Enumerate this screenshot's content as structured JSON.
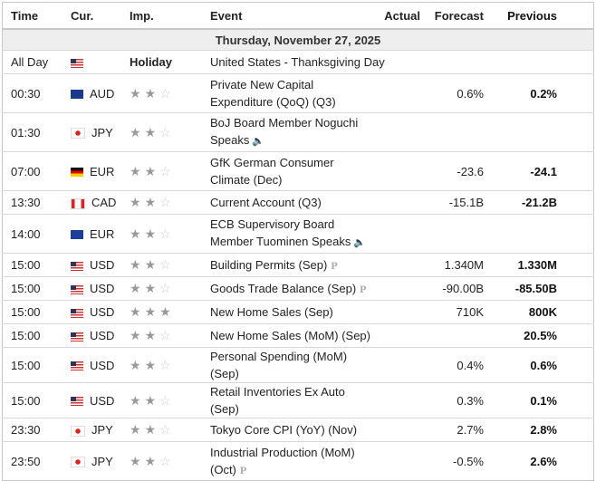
{
  "headers": {
    "time": "Time",
    "cur": "Cur.",
    "imp": "Imp.",
    "event": "Event",
    "actual": "Actual",
    "forecast": "Forecast",
    "previous": "Previous"
  },
  "date": "Thursday, November 27, 2025",
  "holiday": {
    "time": "All Day",
    "country": "us",
    "label": "Holiday",
    "event": "United States - Thanksgiving Day"
  },
  "rows": [
    {
      "time": "00:30",
      "country": "au",
      "cur": "AUD",
      "stars": 2,
      "event": "Private New Capital Expenditure (QoQ) (Q3)",
      "actual": "",
      "forecast": "0.6%",
      "previous": "0.2%",
      "double": true
    },
    {
      "time": "01:30",
      "country": "jp",
      "cur": "JPY",
      "stars": 2,
      "event": "BoJ Board Member Noguchi Speaks",
      "icon": "speaker-icon",
      "actual": "",
      "forecast": "",
      "previous": "",
      "double": true
    },
    {
      "time": "07:00",
      "country": "de",
      "cur": "EUR",
      "stars": 2,
      "event": "GfK German Consumer Climate (Dec)",
      "actual": "",
      "forecast": "-23.6",
      "previous": "-24.1",
      "double": true
    },
    {
      "time": "13:30",
      "country": "ca",
      "cur": "CAD",
      "stars": 2,
      "event": "Current Account (Q3)",
      "actual": "",
      "forecast": "-15.1B",
      "previous": "-21.2B"
    },
    {
      "time": "14:00",
      "country": "eu",
      "cur": "EUR",
      "stars": 2,
      "event": "ECB Supervisory Board Member Tuominen Speaks",
      "icon": "speaker-icon",
      "actual": "",
      "forecast": "",
      "previous": "",
      "double": true
    },
    {
      "time": "15:00",
      "country": "us",
      "cur": "USD",
      "stars": 2,
      "event": "Building Permits (Sep)",
      "icon": "preliminary-icon",
      "actual": "",
      "forecast": "1.340M",
      "previous": "1.330M"
    },
    {
      "time": "15:00",
      "country": "us",
      "cur": "USD",
      "stars": 2,
      "event": "Goods Trade Balance (Sep)",
      "icon": "preliminary-icon",
      "actual": "",
      "forecast": "-90.00B",
      "previous": "-85.50B"
    },
    {
      "time": "15:00",
      "country": "us",
      "cur": "USD",
      "stars": 3,
      "event": "New Home Sales (Sep)",
      "actual": "",
      "forecast": "710K",
      "previous": "800K"
    },
    {
      "time": "15:00",
      "country": "us",
      "cur": "USD",
      "stars": 2,
      "event": "New Home Sales (MoM) (Sep)",
      "actual": "",
      "forecast": "",
      "previous": "20.5%"
    },
    {
      "time": "15:00",
      "country": "us",
      "cur": "USD",
      "stars": 2,
      "event": "Personal Spending (MoM) (Sep)",
      "actual": "",
      "forecast": "0.4%",
      "previous": "0.6%"
    },
    {
      "time": "15:00",
      "country": "us",
      "cur": "USD",
      "stars": 2,
      "event": "Retail Inventories Ex Auto (Sep)",
      "actual": "",
      "forecast": "0.3%",
      "previous": "0.1%"
    },
    {
      "time": "23:30",
      "country": "jp",
      "cur": "JPY",
      "stars": 2,
      "event": "Tokyo Core CPI (YoY) (Nov)",
      "actual": "",
      "forecast": "2.7%",
      "previous": "2.8%"
    },
    {
      "time": "23:50",
      "country": "jp",
      "cur": "JPY",
      "stars": 2,
      "event": "Industrial Production (MoM) (Oct)",
      "icon": "preliminary-icon",
      "actual": "",
      "forecast": "-0.5%",
      "previous": "2.6%",
      "double": true
    }
  ],
  "icons": {
    "speaker": "🔈",
    "preliminary": "P",
    "star": "★",
    "star_empty": "☆"
  }
}
